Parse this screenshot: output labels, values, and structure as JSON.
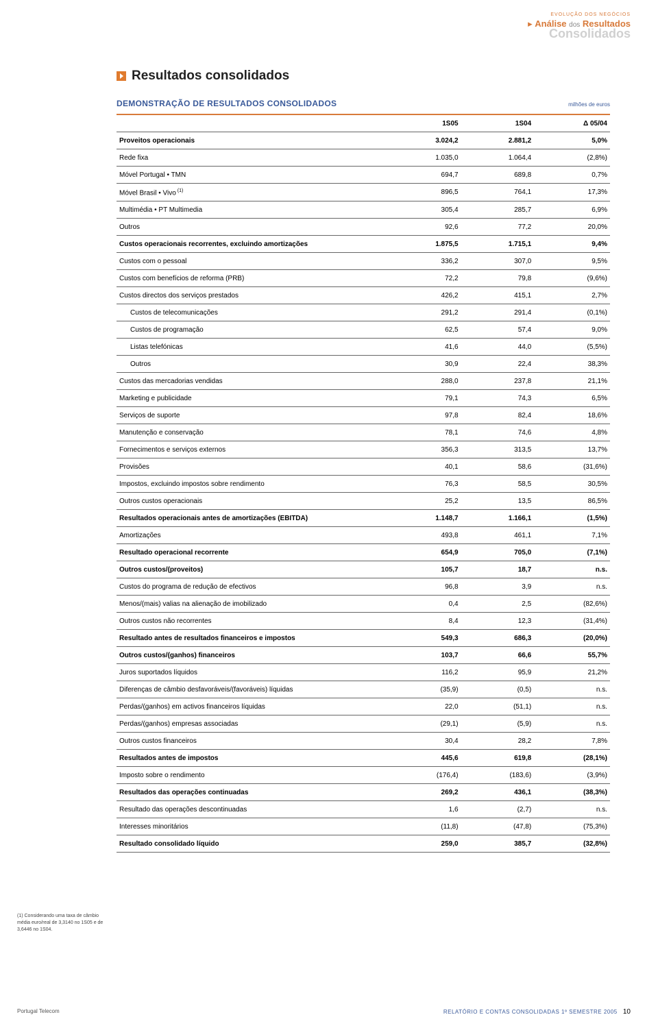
{
  "header": {
    "small": "EVOLUÇÃO DOS NEGÓCIOS",
    "l1a": "Análise",
    "l1b": "dos",
    "l1c": "Resultados",
    "l2": "Consolidados"
  },
  "title": "Resultados consolidados",
  "subtitle": "DEMONSTRAÇÃO DE RESULTADOS CONSOLIDADOS",
  "unit": "milhões de euros",
  "columns": [
    "1S05",
    "1S04",
    "Δ 05/04"
  ],
  "rows": [
    {
      "label": "Proveitos operacionais",
      "v": [
        "3.024,2",
        "2.881,2",
        "5,0%"
      ],
      "bold": true,
      "indent": 0
    },
    {
      "label": "Rede fixa",
      "v": [
        "1.035,0",
        "1.064,4",
        "(2,8%)"
      ],
      "indent": 0
    },
    {
      "label": "Móvel Portugal • TMN",
      "v": [
        "694,7",
        "689,8",
        "0,7%"
      ],
      "indent": 0,
      "sup": ""
    },
    {
      "label": "Móvel Brasil • Vivo",
      "v": [
        "896,5",
        "764,1",
        "17,3%"
      ],
      "indent": 0,
      "sup": "(1)"
    },
    {
      "label": "Multimédia • PT Multimedia",
      "v": [
        "305,4",
        "285,7",
        "6,9%"
      ],
      "indent": 0
    },
    {
      "label": "Outros",
      "v": [
        "92,6",
        "77,2",
        "20,0%"
      ],
      "indent": 0
    },
    {
      "label": "Custos operacionais recorrentes, excluindo amortizações",
      "v": [
        "1.875,5",
        "1.715,1",
        "9,4%"
      ],
      "bold": true,
      "indent": 0
    },
    {
      "label": "Custos com o pessoal",
      "v": [
        "336,2",
        "307,0",
        "9,5%"
      ],
      "indent": 0
    },
    {
      "label": "Custos com benefícios de reforma (PRB)",
      "v": [
        "72,2",
        "79,8",
        "(9,6%)"
      ],
      "indent": 0
    },
    {
      "label": "Custos directos dos serviços prestados",
      "v": [
        "426,2",
        "415,1",
        "2,7%"
      ],
      "indent": 0
    },
    {
      "label": "Custos de telecomunicações",
      "v": [
        "291,2",
        "291,4",
        "(0,1%)"
      ],
      "indent": 1
    },
    {
      "label": "Custos de programação",
      "v": [
        "62,5",
        "57,4",
        "9,0%"
      ],
      "indent": 1
    },
    {
      "label": "Listas telefónicas",
      "v": [
        "41,6",
        "44,0",
        "(5,5%)"
      ],
      "indent": 1
    },
    {
      "label": "Outros",
      "v": [
        "30,9",
        "22,4",
        "38,3%"
      ],
      "indent": 1
    },
    {
      "label": "Custos das mercadorias vendidas",
      "v": [
        "288,0",
        "237,8",
        "21,1%"
      ],
      "indent": 0
    },
    {
      "label": "Marketing e publicidade",
      "v": [
        "79,1",
        "74,3",
        "6,5%"
      ],
      "indent": 0
    },
    {
      "label": "Serviços de suporte",
      "v": [
        "97,8",
        "82,4",
        "18,6%"
      ],
      "indent": 0
    },
    {
      "label": "Manutenção e conservação",
      "v": [
        "78,1",
        "74,6",
        "4,8%"
      ],
      "indent": 0
    },
    {
      "label": "Fornecimentos e serviços externos",
      "v": [
        "356,3",
        "313,5",
        "13,7%"
      ],
      "indent": 0
    },
    {
      "label": "Provisões",
      "v": [
        "40,1",
        "58,6",
        "(31,6%)"
      ],
      "indent": 0
    },
    {
      "label": "Impostos, excluindo impostos sobre rendimento",
      "v": [
        "76,3",
        "58,5",
        "30,5%"
      ],
      "indent": 0
    },
    {
      "label": "Outros custos operacionais",
      "v": [
        "25,2",
        "13,5",
        "86,5%"
      ],
      "indent": 0
    },
    {
      "label": "Resultados operacionais antes de amortizações (EBITDA)",
      "v": [
        "1.148,7",
        "1.166,1",
        "(1,5%)"
      ],
      "bold": true,
      "indent": 0
    },
    {
      "label": "Amortizações",
      "v": [
        "493,8",
        "461,1",
        "7,1%"
      ],
      "indent": 0
    },
    {
      "label": "Resultado operacional recorrente",
      "v": [
        "654,9",
        "705,0",
        "(7,1%)"
      ],
      "bold": true,
      "indent": 0
    },
    {
      "label": "Outros custos/(proveitos)",
      "v": [
        "105,7",
        "18,7",
        "n.s."
      ],
      "bold": true,
      "indent": 0
    },
    {
      "label": "Custos do programa de redução de efectivos",
      "v": [
        "96,8",
        "3,9",
        "n.s."
      ],
      "indent": 0
    },
    {
      "label": "Menos/(mais) valias na alienação de imobilizado",
      "v": [
        "0,4",
        "2,5",
        "(82,6%)"
      ],
      "indent": 0
    },
    {
      "label": "Outros custos não recorrentes",
      "v": [
        "8,4",
        "12,3",
        "(31,4%)"
      ],
      "indent": 0
    },
    {
      "label": "Resultado antes de resultados financeiros e impostos",
      "v": [
        "549,3",
        "686,3",
        "(20,0%)"
      ],
      "bold": true,
      "indent": 0
    },
    {
      "label": "Outros custos/(ganhos) financeiros",
      "v": [
        "103,7",
        "66,6",
        "55,7%"
      ],
      "bold": true,
      "indent": 0
    },
    {
      "label": "Juros suportados líquidos",
      "v": [
        "116,2",
        "95,9",
        "21,2%"
      ],
      "indent": 0
    },
    {
      "label": "Diferenças de câmbio desfavoráveis/(favoráveis) líquidas",
      "v": [
        "(35,9)",
        "(0,5)",
        "n.s."
      ],
      "indent": 0
    },
    {
      "label": "Perdas/(ganhos) em activos financeiros líquidas",
      "v": [
        "22,0",
        "(51,1)",
        "n.s."
      ],
      "indent": 0
    },
    {
      "label": "Perdas/(ganhos) empresas associadas",
      "v": [
        "(29,1)",
        "(5,9)",
        "n.s."
      ],
      "indent": 0
    },
    {
      "label": "Outros custos financeiros",
      "v": [
        "30,4",
        "28,2",
        "7,8%"
      ],
      "indent": 0
    },
    {
      "label": "Resultados antes de impostos",
      "v": [
        "445,6",
        "619,8",
        "(28,1%)"
      ],
      "bold": true,
      "indent": 0
    },
    {
      "label": "Imposto sobre o rendimento",
      "v": [
        "(176,4)",
        "(183,6)",
        "(3,9%)"
      ],
      "indent": 0
    },
    {
      "label": "Resultados das operações continuadas",
      "v": [
        "269,2",
        "436,1",
        "(38,3%)"
      ],
      "bold": true,
      "indent": 0
    },
    {
      "label": "Resultado das operações descontinuadas",
      "v": [
        "1,6",
        "(2,7)",
        "n.s."
      ],
      "indent": 0
    },
    {
      "label": "Interesses minoritários",
      "v": [
        "(11,8)",
        "(47,8)",
        "(75,3%)"
      ],
      "indent": 0
    },
    {
      "label": "Resultado consolidado líquido",
      "v": [
        "259,0",
        "385,7",
        "(32,8%)"
      ],
      "bold": true,
      "indent": 0
    }
  ],
  "footnote": "(1) Considerando uma taxa de câmbio média euro/real de 3,3140 no 1S05 e de 3,6446 no 1S04.",
  "footer": {
    "left": "Portugal Telecom",
    "right": "RELATÓRIO E CONTAS CONSOLIDADAS 1º SEMESTRE 2005",
    "page": "10"
  },
  "colors": {
    "accent": "#d87a3a",
    "blue": "#3a5a9a"
  }
}
